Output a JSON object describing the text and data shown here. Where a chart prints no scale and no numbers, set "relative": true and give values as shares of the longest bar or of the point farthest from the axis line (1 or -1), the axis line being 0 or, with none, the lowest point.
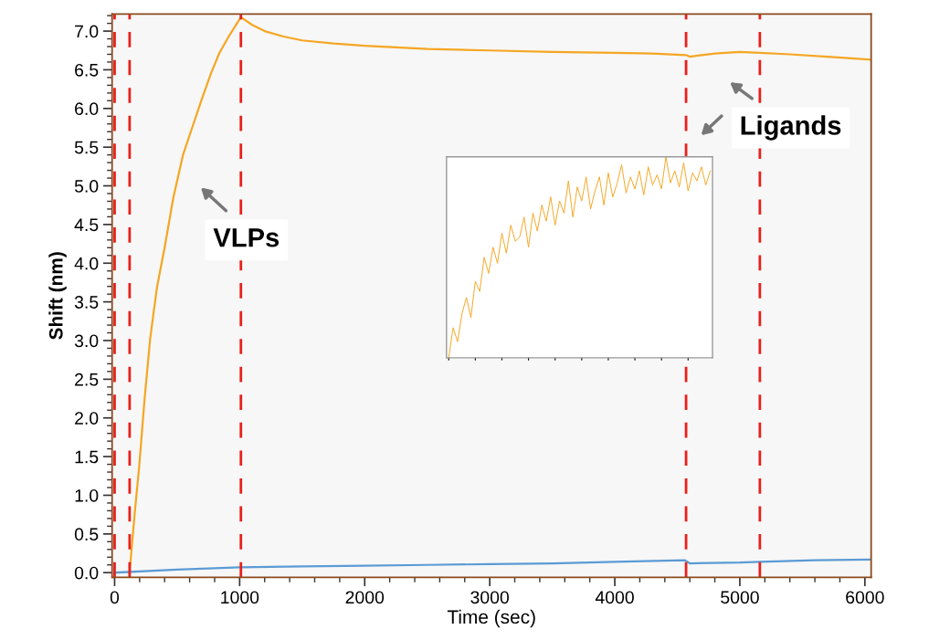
{
  "chart_data": [
    {
      "type": "line",
      "xlabel": "Time (sec)",
      "ylabel": "Shift (nm)",
      "xlim": [
        -20,
        6050
      ],
      "ylim": [
        -0.06,
        7.22
      ],
      "xticks": [
        0,
        1000,
        2000,
        3000,
        4000,
        5000,
        6000
      ],
      "yticks": [
        {
          "value": 0,
          "label": "0.0"
        },
        {
          "value": 0.5,
          "label": "0.5"
        },
        {
          "value": 1,
          "label": "1.0"
        },
        {
          "value": 1.5,
          "label": "1.5"
        },
        {
          "value": 2,
          "label": "2.0"
        },
        {
          "value": 2.5,
          "label": "2.5"
        },
        {
          "value": 3,
          "label": "3.0"
        },
        {
          "value": 3.5,
          "label": "3.5"
        },
        {
          "value": 4,
          "label": "4.0"
        },
        {
          "value": 4.5,
          "label": "4.5"
        },
        {
          "value": 5,
          "label": "5.0"
        },
        {
          "value": 5.5,
          "label": "5.5"
        },
        {
          "value": 6,
          "label": "6.0"
        },
        {
          "value": 6.5,
          "label": "6.5"
        },
        {
          "value": 7,
          "label": "7.0"
        }
      ],
      "series": [
        {
          "color": "#f5a623",
          "x": [
            120,
            124,
            160,
            197,
            240,
            285,
            340,
            401,
            470,
            547,
            620,
            693,
            770,
            839,
            920,
            1010,
            1100,
            1200,
            1350,
            1500,
            1750,
            2000,
            2500,
            3000,
            3500,
            4000,
            4300,
            4570,
            4600,
            4800,
            5000,
            5160,
            5400,
            5700,
            6050
          ],
          "values": [
            0.0,
            0.08,
            0.75,
            1.38,
            2.25,
            3.03,
            3.7,
            4.21,
            4.85,
            5.4,
            5.75,
            6.1,
            6.45,
            6.72,
            6.95,
            7.18,
            7.08,
            7.0,
            6.93,
            6.88,
            6.84,
            6.81,
            6.77,
            6.75,
            6.73,
            6.72,
            6.71,
            6.69,
            6.67,
            6.71,
            6.73,
            6.72,
            6.7,
            6.67,
            6.63
          ]
        },
        {
          "color": "#5b9bd5",
          "x": [
            0,
            500,
            1000,
            1500,
            2000,
            2500,
            3000,
            3500,
            4000,
            4560,
            4600,
            5000,
            5160,
            5600,
            6050
          ],
          "values": [
            0.0,
            0.04,
            0.07,
            0.08,
            0.09,
            0.1,
            0.11,
            0.12,
            0.14,
            0.16,
            0.12,
            0.13,
            0.14,
            0.16,
            0.17
          ]
        }
      ],
      "ref_lines": [
        {
          "axis": "x",
          "value": 0,
          "color": "#e8201a",
          "line_style": "dashed"
        },
        {
          "axis": "x",
          "value": 120,
          "color": "#e8201a",
          "line_style": "dashed"
        },
        {
          "axis": "x",
          "value": 1010,
          "color": "#e8201a",
          "line_style": "dashed"
        },
        {
          "axis": "x",
          "value": 4570,
          "color": "#e8201a",
          "line_style": "dashed"
        },
        {
          "axis": "x",
          "value": 5160,
          "color": "#e8201a",
          "line_style": "dashed"
        }
      ],
      "annotations": [
        "VLPs",
        "Ligands"
      ],
      "grid": false,
      "legend": false
    },
    {
      "type": "line",
      "relative": true,
      "tick_labels": false,
      "grid": false,
      "legend": false,
      "categories": [
        null,
        null,
        null,
        null,
        null,
        null,
        null,
        null,
        null,
        null,
        null,
        null,
        null,
        null,
        null,
        null,
        null,
        null,
        null,
        null,
        null,
        null,
        null,
        null,
        null,
        null,
        null,
        null,
        null,
        null,
        null,
        null,
        null,
        null,
        null,
        null,
        null,
        null,
        null,
        null,
        null,
        null,
        null,
        null,
        null,
        null,
        null,
        null,
        null,
        null,
        null,
        null,
        null,
        null,
        null,
        null,
        null,
        null,
        null,
        null
      ],
      "series": [
        {
          "color": "#f5a623",
          "values": [
            0.0,
            0.15,
            0.08,
            0.22,
            0.3,
            0.2,
            0.38,
            0.33,
            0.5,
            0.42,
            0.55,
            0.47,
            0.62,
            0.52,
            0.66,
            0.58,
            0.6,
            0.7,
            0.55,
            0.72,
            0.63,
            0.76,
            0.68,
            0.8,
            0.66,
            0.78,
            0.72,
            0.88,
            0.7,
            0.85,
            0.78,
            0.9,
            0.74,
            0.83,
            0.9,
            0.76,
            0.92,
            0.8,
            0.87,
            0.96,
            0.82,
            0.9,
            0.84,
            0.93,
            0.81,
            0.95,
            0.86,
            0.91,
            0.84,
            1.0,
            0.87,
            0.93,
            0.85,
            0.97,
            0.83,
            0.92,
            0.88,
            0.95,
            0.86,
            0.93
          ]
        }
      ]
    }
  ]
}
